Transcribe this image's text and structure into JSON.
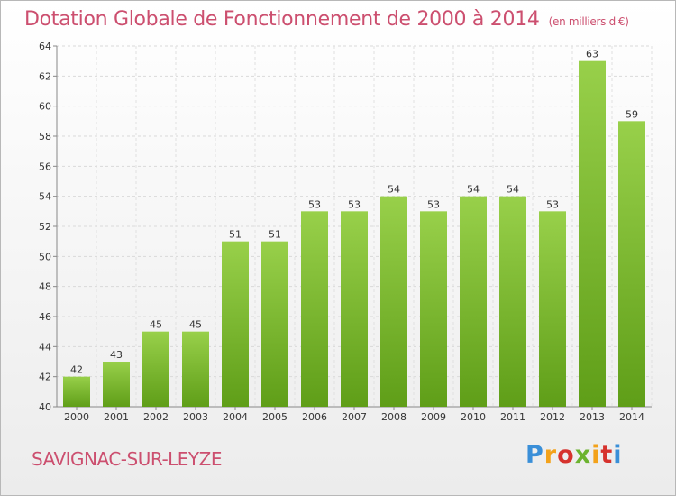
{
  "header": {
    "title": "Dotation Globale de Fonctionnement de 2000 à 2014",
    "unit": "(en milliers d'€)"
  },
  "footer": {
    "commune": "SAVIGNAC-SUR-LEYZE",
    "logo": "Proxiti"
  },
  "chart_data": {
    "type": "bar",
    "title": "Dotation Globale de Fonctionnement de 2000 à 2014",
    "subtitle": "(en milliers d'€)",
    "xlabel": "",
    "ylabel": "",
    "categories": [
      "2000",
      "2001",
      "2002",
      "2003",
      "2004",
      "2005",
      "2006",
      "2007",
      "2008",
      "2009",
      "2010",
      "2011",
      "2012",
      "2013",
      "2014"
    ],
    "values": [
      42,
      43,
      45,
      45,
      51,
      51,
      53,
      53,
      54,
      53,
      54,
      54,
      53,
      63,
      59
    ],
    "ylim": [
      40,
      64
    ],
    "yticks": [
      40,
      42,
      44,
      46,
      48,
      50,
      52,
      54,
      56,
      58,
      60,
      62,
      64
    ],
    "grid": true,
    "bar_color": "#7dbb2c"
  }
}
